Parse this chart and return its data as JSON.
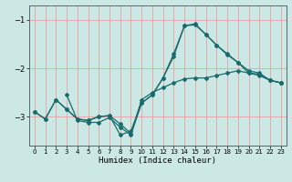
{
  "xlabel": "Humidex (Indice chaleur)",
  "background_color": "#cce8e5",
  "plot_bg_color": "#cce8e5",
  "grid_color": "#e8a0a0",
  "line_color": "#1a6b6b",
  "x_ticks": [
    0,
    1,
    2,
    3,
    4,
    5,
    6,
    7,
    8,
    9,
    10,
    11,
    12,
    13,
    14,
    15,
    16,
    17,
    18,
    19,
    20,
    21,
    22,
    23
  ],
  "y_ticks": [
    -1,
    -2,
    -3
  ],
  "xlim": [
    -0.5,
    23.5
  ],
  "ylim": [
    -3.6,
    -0.7
  ],
  "series": {
    "line1": {
      "x": [
        0,
        1,
        2,
        3,
        4,
        5,
        6,
        7,
        8,
        9,
        10,
        11,
        12,
        13,
        14,
        15,
        16,
        17,
        18,
        19,
        20,
        21,
        22,
        23
      ],
      "y": [
        -2.9,
        -3.05,
        -2.65,
        -2.85,
        -3.05,
        -3.08,
        -3.0,
        -2.98,
        -3.15,
        -3.35,
        -2.65,
        -2.5,
        -2.4,
        -2.3,
        -2.22,
        -2.2,
        -2.2,
        -2.15,
        -2.1,
        -2.05,
        -2.1,
        -2.15,
        -2.25,
        -2.3
      ]
    },
    "line2": {
      "x": [
        0,
        1,
        2,
        3,
        4,
        5,
        6,
        7,
        8,
        9,
        10,
        11,
        12,
        13,
        14,
        15,
        16,
        17,
        18,
        19,
        20,
        21,
        22,
        23
      ],
      "y": [
        -2.9,
        -3.05,
        -2.65,
        -2.85,
        -3.05,
        -3.08,
        -3.0,
        -2.98,
        -3.38,
        -3.3,
        -2.72,
        -2.55,
        -2.2,
        -1.7,
        -1.12,
        -1.08,
        -1.3,
        -1.52,
        -1.72,
        -1.88,
        -2.05,
        -2.1,
        -2.25,
        -2.3
      ]
    },
    "line3": {
      "x": [
        3,
        4,
        5,
        6,
        7,
        8,
        9,
        10,
        11,
        12,
        13,
        14,
        15,
        16,
        17,
        18,
        19,
        20,
        21,
        22,
        23
      ],
      "y": [
        -2.55,
        -3.08,
        -3.12,
        -3.12,
        -3.02,
        -3.22,
        -3.38,
        -2.72,
        -2.55,
        -2.2,
        -1.75,
        -1.12,
        -1.1,
        -1.3,
        -1.52,
        -1.7,
        -1.88,
        -2.1,
        -2.12,
        -2.25,
        -2.3
      ]
    }
  }
}
